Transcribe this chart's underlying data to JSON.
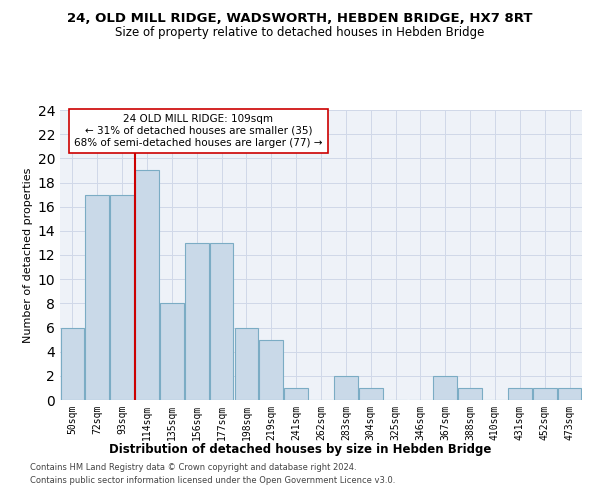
{
  "title": "24, OLD MILL RIDGE, WADSWORTH, HEBDEN BRIDGE, HX7 8RT",
  "subtitle": "Size of property relative to detached houses in Hebden Bridge",
  "xlabel": "Distribution of detached houses by size in Hebden Bridge",
  "ylabel": "Number of detached properties",
  "footer1": "Contains HM Land Registry data © Crown copyright and database right 2024.",
  "footer2": "Contains public sector information licensed under the Open Government Licence v3.0.",
  "categories": [
    "50sqm",
    "72sqm",
    "93sqm",
    "114sqm",
    "135sqm",
    "156sqm",
    "177sqm",
    "198sqm",
    "219sqm",
    "241sqm",
    "262sqm",
    "283sqm",
    "304sqm",
    "325sqm",
    "346sqm",
    "367sqm",
    "388sqm",
    "410sqm",
    "431sqm",
    "452sqm",
    "473sqm"
  ],
  "values": [
    6,
    17,
    17,
    19,
    8,
    13,
    13,
    6,
    5,
    1,
    0,
    2,
    1,
    0,
    0,
    2,
    1,
    0,
    1,
    1,
    1
  ],
  "bar_color": "#c9d9e8",
  "bar_edgecolor": "#7bacc4",
  "vline_pos": 2.5,
  "vline_color": "#cc0000",
  "annotation_text": "24 OLD MILL RIDGE: 109sqm\n← 31% of detached houses are smaller (35)\n68% of semi-detached houses are larger (77) →",
  "annotation_box_color": "#cc0000",
  "ylim": [
    0,
    24
  ],
  "yticks": [
    0,
    2,
    4,
    6,
    8,
    10,
    12,
    14,
    16,
    18,
    20,
    22,
    24
  ],
  "grid_color": "#d0d8e8",
  "bg_color": "#eef2f8",
  "title_fontsize": 9.5,
  "subtitle_fontsize": 8.5,
  "xlabel_fontsize": 8.5,
  "ylabel_fontsize": 8,
  "tick_fontsize": 7,
  "annotation_fontsize": 7.5,
  "footer_fontsize": 6
}
